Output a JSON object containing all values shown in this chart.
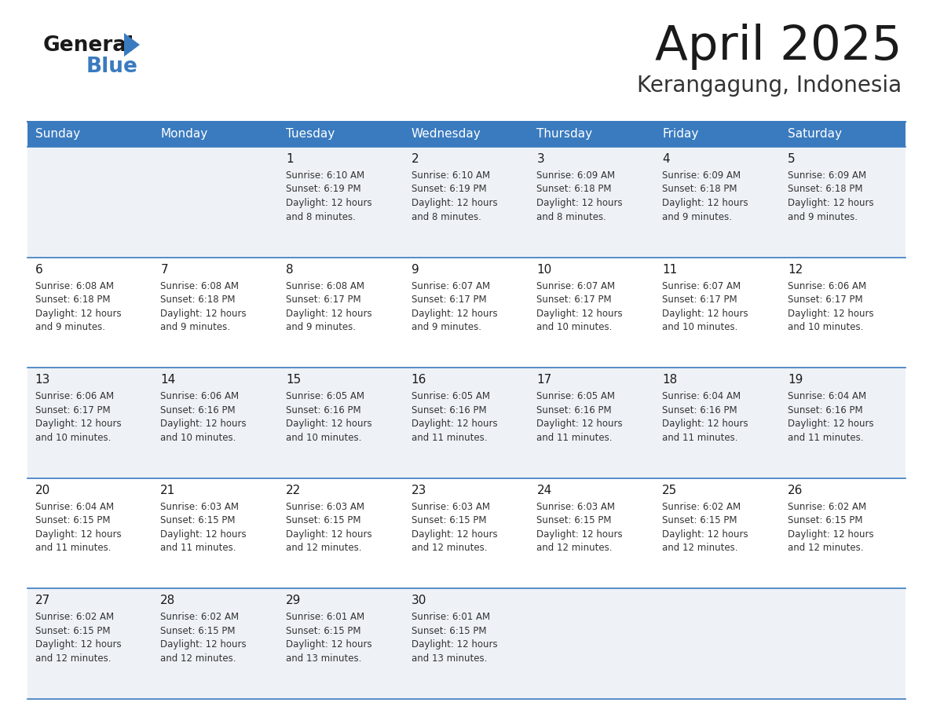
{
  "title": "April 2025",
  "subtitle": "Kerangagung, Indonesia",
  "header_bg_color": "#3a7bbf",
  "header_text_color": "#ffffff",
  "cell_bg_even": "#eef2f7",
  "cell_bg_odd": "#ffffff",
  "days_of_week": [
    "Sunday",
    "Monday",
    "Tuesday",
    "Wednesday",
    "Thursday",
    "Friday",
    "Saturday"
  ],
  "title_color": "#1a1a1a",
  "subtitle_color": "#333333",
  "cell_text_color": "#333333",
  "day_number_color": "#1a1a1a",
  "line_color": "#3a7bbf",
  "logo_black": "#1a1a1a",
  "logo_blue": "#3a7bbf",
  "calendar": [
    [
      {
        "day": null,
        "sunrise": null,
        "sunset": null,
        "daylight": null
      },
      {
        "day": null,
        "sunrise": null,
        "sunset": null,
        "daylight": null
      },
      {
        "day": 1,
        "sunrise": "6:10 AM",
        "sunset": "6:19 PM",
        "daylight": "12 hours and 8 minutes."
      },
      {
        "day": 2,
        "sunrise": "6:10 AM",
        "sunset": "6:19 PM",
        "daylight": "12 hours and 8 minutes."
      },
      {
        "day": 3,
        "sunrise": "6:09 AM",
        "sunset": "6:18 PM",
        "daylight": "12 hours and 8 minutes."
      },
      {
        "day": 4,
        "sunrise": "6:09 AM",
        "sunset": "6:18 PM",
        "daylight": "12 hours and 9 minutes."
      },
      {
        "day": 5,
        "sunrise": "6:09 AM",
        "sunset": "6:18 PM",
        "daylight": "12 hours and 9 minutes."
      }
    ],
    [
      {
        "day": 6,
        "sunrise": "6:08 AM",
        "sunset": "6:18 PM",
        "daylight": "12 hours and 9 minutes."
      },
      {
        "day": 7,
        "sunrise": "6:08 AM",
        "sunset": "6:18 PM",
        "daylight": "12 hours and 9 minutes."
      },
      {
        "day": 8,
        "sunrise": "6:08 AM",
        "sunset": "6:17 PM",
        "daylight": "12 hours and 9 minutes."
      },
      {
        "day": 9,
        "sunrise": "6:07 AM",
        "sunset": "6:17 PM",
        "daylight": "12 hours and 9 minutes."
      },
      {
        "day": 10,
        "sunrise": "6:07 AM",
        "sunset": "6:17 PM",
        "daylight": "12 hours and 10 minutes."
      },
      {
        "day": 11,
        "sunrise": "6:07 AM",
        "sunset": "6:17 PM",
        "daylight": "12 hours and 10 minutes."
      },
      {
        "day": 12,
        "sunrise": "6:06 AM",
        "sunset": "6:17 PM",
        "daylight": "12 hours and 10 minutes."
      }
    ],
    [
      {
        "day": 13,
        "sunrise": "6:06 AM",
        "sunset": "6:17 PM",
        "daylight": "12 hours and 10 minutes."
      },
      {
        "day": 14,
        "sunrise": "6:06 AM",
        "sunset": "6:16 PM",
        "daylight": "12 hours and 10 minutes."
      },
      {
        "day": 15,
        "sunrise": "6:05 AM",
        "sunset": "6:16 PM",
        "daylight": "12 hours and 10 minutes."
      },
      {
        "day": 16,
        "sunrise": "6:05 AM",
        "sunset": "6:16 PM",
        "daylight": "12 hours and 11 minutes."
      },
      {
        "day": 17,
        "sunrise": "6:05 AM",
        "sunset": "6:16 PM",
        "daylight": "12 hours and 11 minutes."
      },
      {
        "day": 18,
        "sunrise": "6:04 AM",
        "sunset": "6:16 PM",
        "daylight": "12 hours and 11 minutes."
      },
      {
        "day": 19,
        "sunrise": "6:04 AM",
        "sunset": "6:16 PM",
        "daylight": "12 hours and 11 minutes."
      }
    ],
    [
      {
        "day": 20,
        "sunrise": "6:04 AM",
        "sunset": "6:15 PM",
        "daylight": "12 hours and 11 minutes."
      },
      {
        "day": 21,
        "sunrise": "6:03 AM",
        "sunset": "6:15 PM",
        "daylight": "12 hours and 11 minutes."
      },
      {
        "day": 22,
        "sunrise": "6:03 AM",
        "sunset": "6:15 PM",
        "daylight": "12 hours and 12 minutes."
      },
      {
        "day": 23,
        "sunrise": "6:03 AM",
        "sunset": "6:15 PM",
        "daylight": "12 hours and 12 minutes."
      },
      {
        "day": 24,
        "sunrise": "6:03 AM",
        "sunset": "6:15 PM",
        "daylight": "12 hours and 12 minutes."
      },
      {
        "day": 25,
        "sunrise": "6:02 AM",
        "sunset": "6:15 PM",
        "daylight": "12 hours and 12 minutes."
      },
      {
        "day": 26,
        "sunrise": "6:02 AM",
        "sunset": "6:15 PM",
        "daylight": "12 hours and 12 minutes."
      }
    ],
    [
      {
        "day": 27,
        "sunrise": "6:02 AM",
        "sunset": "6:15 PM",
        "daylight": "12 hours and 12 minutes."
      },
      {
        "day": 28,
        "sunrise": "6:02 AM",
        "sunset": "6:15 PM",
        "daylight": "12 hours and 12 minutes."
      },
      {
        "day": 29,
        "sunrise": "6:01 AM",
        "sunset": "6:15 PM",
        "daylight": "12 hours and 13 minutes."
      },
      {
        "day": 30,
        "sunrise": "6:01 AM",
        "sunset": "6:15 PM",
        "daylight": "12 hours and 13 minutes."
      },
      {
        "day": null,
        "sunrise": null,
        "sunset": null,
        "daylight": null
      },
      {
        "day": null,
        "sunrise": null,
        "sunset": null,
        "daylight": null
      },
      {
        "day": null,
        "sunrise": null,
        "sunset": null,
        "daylight": null
      }
    ]
  ]
}
